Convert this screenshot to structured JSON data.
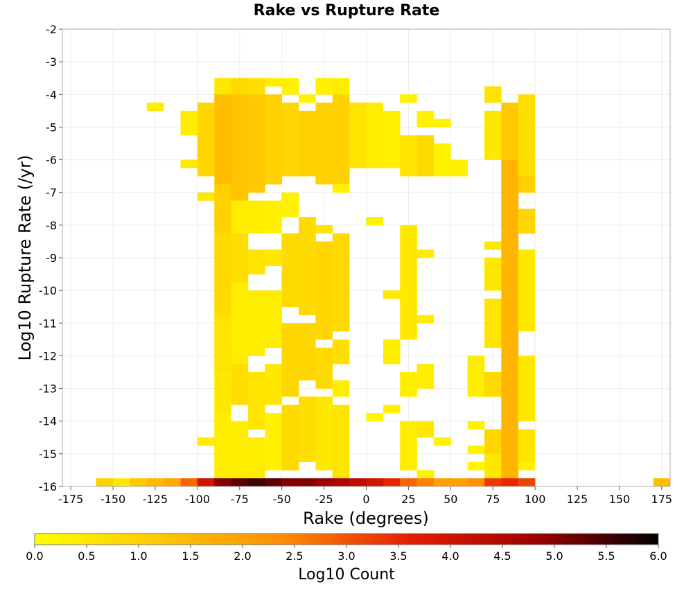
{
  "chart_data": {
    "type": "heatmap",
    "title": "Rake vs Rupture Rate",
    "xlabel": "Rake (degrees)",
    "ylabel": "Log10 Rupture Rate (/yr)",
    "colorbar_label": "Log10 Count",
    "xlim": [
      -180,
      180
    ],
    "ylim": [
      -16,
      -2
    ],
    "x_ticks": [
      -175,
      -150,
      -125,
      -100,
      -75,
      -50,
      -25,
      0,
      25,
      50,
      75,
      100,
      125,
      150,
      175
    ],
    "y_ticks": [
      -2,
      -3,
      -4,
      -5,
      -6,
      -7,
      -8,
      -9,
      -10,
      -11,
      -12,
      -13,
      -14,
      -15,
      -16
    ],
    "colorbar_ticks": [
      "0.0",
      "0.5",
      "1.0",
      "1.5",
      "2.0",
      "2.5",
      "3.0",
      "3.5",
      "4.0",
      "4.5",
      "5.0",
      "5.5",
      "6.0"
    ],
    "color_range": [
      0,
      6
    ],
    "grid": true,
    "colormap": [
      "#ffff00",
      "#ffc800",
      "#ff8c00",
      "#e61e00",
      "#a00000",
      "#000000"
    ],
    "bin_size": {
      "x": 10,
      "y": 0.25
    },
    "bottom_row": {
      "y": -16,
      "x": [
        -155,
        -145,
        -135,
        -125,
        -115,
        -105,
        -95,
        -85,
        -75,
        -65,
        -55,
        -45,
        -35,
        -25,
        -15,
        -5,
        5,
        15,
        25,
        35,
        45,
        55,
        65,
        75,
        85,
        95,
        175
      ],
      "values": [
        1.0,
        0.5,
        1.2,
        1.5,
        1.8,
        2.8,
        4.0,
        5.0,
        5.3,
        5.5,
        5.3,
        5.0,
        5.0,
        4.8,
        4.6,
        4.3,
        4.0,
        3.5,
        2.8,
        2.5,
        2.0,
        2.0,
        2.3,
        3.3,
        3.5,
        3.2,
        1.4
      ]
    },
    "columns": [
      {
        "x": -125,
        "ranges": [
          [
            -4.5,
            -4.25,
            0.4
          ]
        ]
      },
      {
        "x": -105,
        "ranges": [
          [
            -6.25,
            -6.0,
            0.5
          ],
          [
            -5.25,
            -4.5,
            0.4
          ]
        ]
      },
      {
        "x": -95,
        "ranges": [
          [
            -7.25,
            -7.0,
            0.5
          ],
          [
            -6.5,
            -4.25,
            0.9
          ],
          [
            -14.75,
            -14.5,
            0.4
          ]
        ]
      },
      {
        "x": -85,
        "ranges": [
          [
            -4.0,
            -3.5,
            0.5
          ],
          [
            -6.75,
            -4.0,
            1.4
          ],
          [
            -8.25,
            -6.75,
            1.0
          ],
          [
            -10.75,
            -8.25,
            0.8
          ],
          [
            -12.5,
            -10.75,
            0.6
          ],
          [
            -13.75,
            -12.5,
            0.5
          ],
          [
            -15.75,
            -13.75,
            0.4
          ]
        ]
      },
      {
        "x": -75,
        "ranges": [
          [
            -4.0,
            -3.5,
            0.8
          ],
          [
            -7.25,
            -4.0,
            1.3
          ],
          [
            -8.25,
            -7.25,
            0.4
          ],
          [
            -9.75,
            -8.25,
            0.7
          ],
          [
            -12.25,
            -9.75,
            0.4
          ],
          [
            -13.5,
            -12.25,
            0.7
          ],
          [
            -15.75,
            -14.0,
            0.4
          ]
        ]
      },
      {
        "x": -65,
        "ranges": [
          [
            -4.0,
            -3.5,
            0.7
          ],
          [
            -7.0,
            -4.0,
            1.2
          ],
          [
            -8.25,
            -7.25,
            0.4
          ],
          [
            -9.5,
            -8.75,
            0.6
          ],
          [
            -12.0,
            -10.0,
            0.4
          ],
          [
            -14.25,
            -12.5,
            0.6
          ],
          [
            -15.75,
            -14.5,
            0.4
          ]
        ]
      },
      {
        "x": -55,
        "ranges": [
          [
            -3.75,
            -3.5,
            0.4
          ],
          [
            -6.75,
            -4.0,
            1.0
          ],
          [
            -8.25,
            -7.25,
            0.3
          ],
          [
            -9.25,
            -8.75,
            0.5
          ],
          [
            -11.75,
            -10.0,
            0.4
          ],
          [
            -13.5,
            -12.25,
            0.5
          ],
          [
            -15.5,
            -13.75,
            0.3
          ]
        ]
      },
      {
        "x": -45,
        "ranges": [
          [
            -4.0,
            -3.5,
            0.3
          ],
          [
            -6.5,
            -4.25,
            0.9
          ],
          [
            -7.75,
            -7.0,
            0.3
          ],
          [
            -10.5,
            -8.25,
            0.8
          ],
          [
            -13.25,
            -11.0,
            0.9
          ],
          [
            -15.5,
            -13.5,
            0.8
          ]
        ]
      },
      {
        "x": -35,
        "ranges": [
          [
            -4.25,
            -4.0,
            0.3
          ],
          [
            -6.5,
            -4.5,
            1.0
          ],
          [
            -10.75,
            -7.75,
            0.8
          ],
          [
            -12.75,
            -11.0,
            0.9
          ],
          [
            -15.25,
            -13.25,
            0.7
          ]
        ]
      },
      {
        "x": -25,
        "ranges": [
          [
            -4.0,
            -3.5,
            0.3
          ],
          [
            -6.75,
            -4.25,
            1.0
          ],
          [
            -8.25,
            -8.0,
            0.6
          ],
          [
            -11.5,
            -8.5,
            0.9
          ],
          [
            -13.0,
            -11.75,
            0.8
          ],
          [
            -15.5,
            -13.25,
            0.5
          ]
        ]
      },
      {
        "x": -15,
        "ranges": [
          [
            -4.0,
            -3.5,
            0.4
          ],
          [
            -6.75,
            -4.0,
            1.0
          ],
          [
            -7.0,
            -6.75,
            0.3
          ],
          [
            -11.25,
            -8.25,
            0.8
          ],
          [
            -12.25,
            -11.5,
            0.7
          ],
          [
            -13.25,
            -12.75,
            0.4
          ],
          [
            -15.75,
            -13.5,
            0.6
          ]
        ]
      },
      {
        "x": -5,
        "ranges": [
          [
            -6.25,
            -4.25,
            0.6
          ]
        ]
      },
      {
        "x": 5,
        "ranges": [
          [
            -6.25,
            -4.25,
            0.4
          ],
          [
            -8.0,
            -7.75,
            0.3
          ],
          [
            -14.0,
            -13.75,
            0.2
          ]
        ]
      },
      {
        "x": 15,
        "ranges": [
          [
            -6.25,
            -4.5,
            0.3
          ],
          [
            -10.25,
            -10.0,
            0.5
          ],
          [
            -12.25,
            -11.5,
            0.4
          ],
          [
            -13.75,
            -13.5,
            0.3
          ]
        ]
      },
      {
        "x": 25,
        "ranges": [
          [
            -4.25,
            -4.0,
            0.3
          ],
          [
            -6.5,
            -5.25,
            0.6
          ],
          [
            -11.5,
            -8.0,
            0.5
          ],
          [
            -13.25,
            -12.5,
            0.4
          ],
          [
            -15.5,
            -14.0,
            0.4
          ]
        ]
      },
      {
        "x": 35,
        "ranges": [
          [
            -5.0,
            -4.5,
            0.3
          ],
          [
            -6.5,
            -5.25,
            0.8
          ],
          [
            -9.0,
            -8.75,
            0.4
          ],
          [
            -11.0,
            -10.75,
            0.4
          ],
          [
            -13.0,
            -12.25,
            0.4
          ],
          [
            -14.5,
            -14.0,
            0.5
          ],
          [
            -15.75,
            -15.5,
            0.3
          ]
        ]
      },
      {
        "x": 45,
        "ranges": [
          [
            -5.0,
            -4.75,
            0.3
          ],
          [
            -6.5,
            -5.5,
            0.3
          ],
          [
            -14.75,
            -14.5,
            0.3
          ]
        ]
      },
      {
        "x": 55,
        "ranges": [
          [
            -6.5,
            -6.0,
            0.3
          ]
        ]
      },
      {
        "x": 65,
        "ranges": [
          [
            -13.25,
            -12.0,
            0.4
          ],
          [
            -14.25,
            -14.0,
            0.3
          ],
          [
            -15.0,
            -14.75,
            0.3
          ],
          [
            -15.5,
            -15.25,
            0.2
          ]
        ]
      },
      {
        "x": 75,
        "ranges": [
          [
            -4.25,
            -3.75,
            0.6
          ],
          [
            -6.0,
            -4.5,
            0.5
          ],
          [
            -8.75,
            -8.5,
            0.5
          ],
          [
            -10.0,
            -9.0,
            0.5
          ],
          [
            -11.75,
            -10.25,
            0.6
          ],
          [
            -13.25,
            -12.5,
            0.8
          ],
          [
            -15.0,
            -14.25,
            0.9
          ],
          [
            -15.75,
            -15.0,
            0.5
          ]
        ]
      },
      {
        "x": 85,
        "ranges": [
          [
            -6.0,
            -4.25,
            1.2
          ],
          [
            -15.75,
            -6.0,
            1.6
          ]
        ]
      },
      {
        "x": 95,
        "ranges": [
          [
            -6.5,
            -4.0,
            0.7
          ],
          [
            -7.0,
            -6.5,
            1.0
          ],
          [
            -8.25,
            -7.5,
            0.9
          ],
          [
            -11.25,
            -8.75,
            0.5
          ],
          [
            -14.0,
            -12.0,
            0.5
          ],
          [
            -15.25,
            -14.25,
            0.6
          ],
          [
            -15.5,
            -15.25,
            0.3
          ]
        ]
      }
    ]
  }
}
